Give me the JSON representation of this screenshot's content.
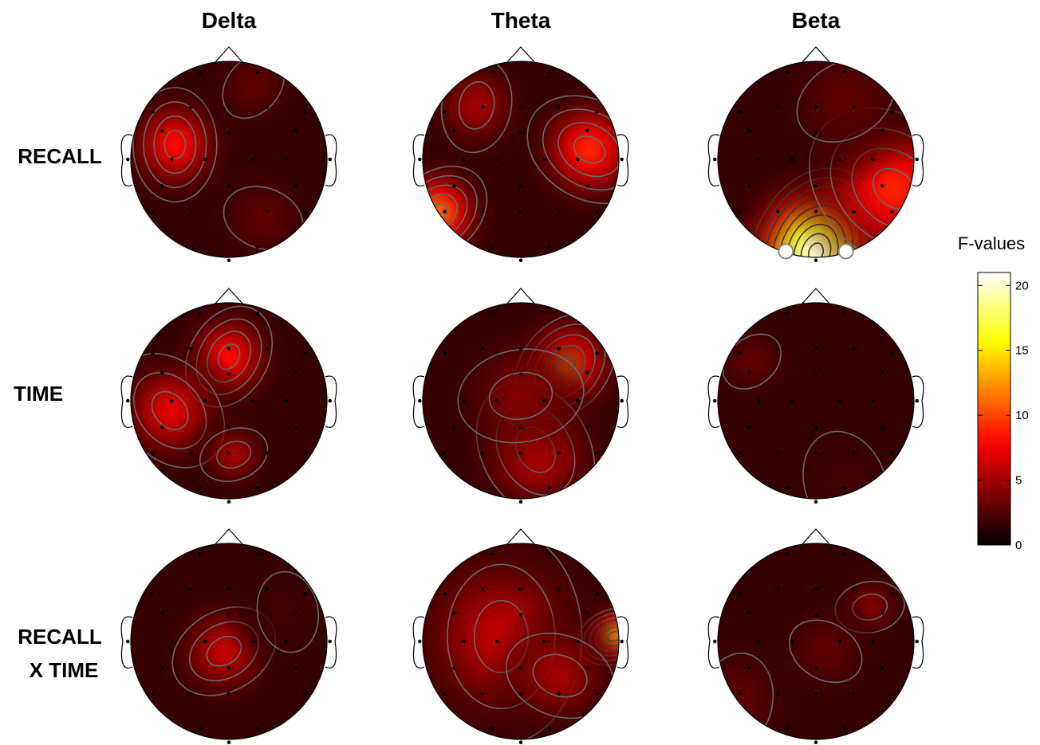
{
  "columns": [
    "Delta",
    "Theta",
    "Beta"
  ],
  "rows": [
    "RECALL",
    "TIME",
    "RECALL",
    "X TIME"
  ],
  "colorbar": {
    "title": "F-values",
    "ticks": [
      "0",
      "5",
      "10",
      "15",
      "20"
    ],
    "tick_values": [
      0,
      5,
      10,
      15,
      20
    ],
    "max": 21,
    "colormap": "hot",
    "colors": [
      "#000000",
      "#3a0000",
      "#8b0000",
      "#ff2000",
      "#ff8000",
      "#ffff00",
      "#ffffff"
    ]
  },
  "maps": [
    {
      "band": "Delta",
      "effect": "RECALL",
      "hotspots": [
        [
          -0.55,
          0.15,
          8,
          0.32
        ],
        [
          0.35,
          -0.6,
          3,
          0.3
        ],
        [
          0.25,
          0.75,
          3,
          0.28
        ]
      ]
    },
    {
      "band": "Theta",
      "effect": "RECALL",
      "hotspots": [
        [
          -0.45,
          0.55,
          5,
          0.3
        ],
        [
          0.7,
          0.1,
          9,
          0.35
        ],
        [
          -0.85,
          -0.55,
          11,
          0.3
        ]
      ]
    },
    {
      "band": "Beta",
      "effect": "RECALL",
      "hotspots": [
        [
          0,
          -0.95,
          20,
          0.45
        ],
        [
          0.8,
          -0.3,
          9,
          0.5
        ],
        [
          0.3,
          0.6,
          3,
          0.4
        ]
      ]
    },
    {
      "band": "Delta",
      "effect": "TIME",
      "hotspots": [
        [
          0.0,
          0.45,
          8,
          0.3
        ],
        [
          -0.6,
          -0.1,
          7,
          0.35
        ],
        [
          0.05,
          -0.55,
          5,
          0.22
        ]
      ]
    },
    {
      "band": "Theta",
      "effect": "TIME",
      "hotspots": [
        [
          0.45,
          0.35,
          11,
          0.32
        ],
        [
          0.15,
          -0.5,
          7,
          0.4
        ],
        [
          0.0,
          0.05,
          4,
          0.4
        ]
      ]
    },
    {
      "band": "Beta",
      "effect": "TIME",
      "hotspots": [
        [
          -0.65,
          0.4,
          3,
          0.25
        ],
        [
          0.3,
          -0.85,
          2,
          0.4
        ]
      ]
    },
    {
      "band": "Delta",
      "effect": "RECALL X TIME",
      "hotspots": [
        [
          -0.05,
          -0.1,
          6,
          0.32
        ],
        [
          0.6,
          0.3,
          2,
          0.3
        ]
      ]
    },
    {
      "band": "Theta",
      "effect": "RECALL X TIME",
      "hotspots": [
        [
          0.95,
          0.05,
          13,
          0.2
        ],
        [
          -0.2,
          0.05,
          6,
          0.6
        ],
        [
          0.4,
          -0.35,
          5,
          0.35
        ]
      ]
    },
    {
      "band": "Beta",
      "effect": "RECALL X TIME",
      "hotspots": [
        [
          0.55,
          0.35,
          4,
          0.22
        ],
        [
          -0.8,
          -0.6,
          3,
          0.35
        ],
        [
          0.1,
          -0.1,
          3,
          0.3
        ]
      ]
    }
  ],
  "electrodes": [
    [
      -0.3,
      0.92
    ],
    [
      0.3,
      0.92
    ],
    [
      -0.8,
      0.5
    ],
    [
      -0.4,
      0.55
    ],
    [
      0,
      0.55
    ],
    [
      0.4,
      0.55
    ],
    [
      0.8,
      0.5
    ],
    [
      -0.7,
      0.3
    ],
    [
      0,
      0.28
    ],
    [
      0.7,
      0.3
    ],
    [
      -1,
      0
    ],
    [
      -0.6,
      0
    ],
    [
      -0.25,
      0
    ],
    [
      0.25,
      0
    ],
    [
      0.6,
      0
    ],
    [
      1,
      0
    ],
    [
      -0.7,
      -0.28
    ],
    [
      0,
      -0.28
    ],
    [
      0.7,
      -0.28
    ],
    [
      -0.8,
      -0.55
    ],
    [
      -0.4,
      -0.55
    ],
    [
      0,
      -0.55
    ],
    [
      0.4,
      -0.55
    ],
    [
      0.8,
      -0.55
    ],
    [
      -0.3,
      -0.92
    ],
    [
      0,
      -1
    ],
    [
      0.3,
      -0.92
    ]
  ],
  "significant_electrodes": [
    {
      "map": 2,
      "pos": [
        -0.3,
        -0.92
      ]
    },
    {
      "map": 2,
      "pos": [
        0.3,
        -0.92
      ]
    }
  ]
}
